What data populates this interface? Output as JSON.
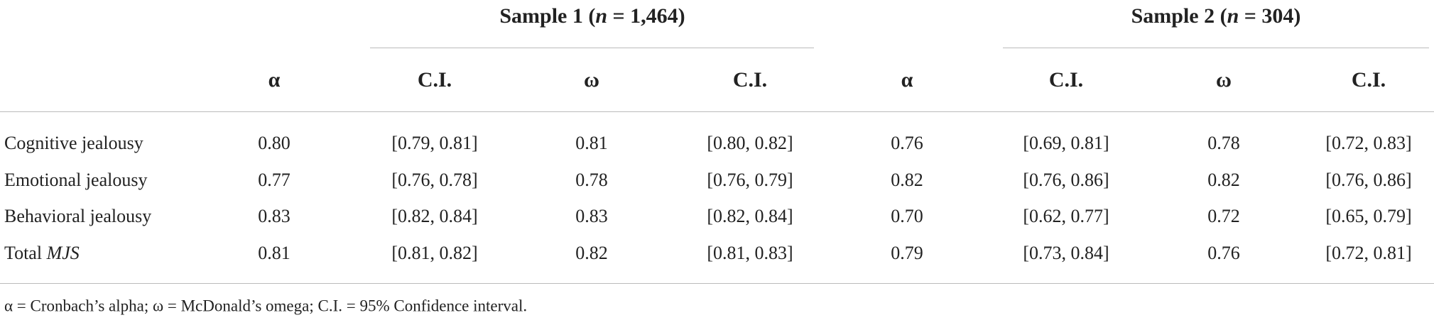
{
  "table": {
    "groups": [
      {
        "prefix": "Sample 1 (",
        "italic": "n",
        "suffix": " = 1,464)"
      },
      {
        "prefix": "Sample 2 (",
        "italic": "n",
        "suffix": " = 304)"
      }
    ],
    "columns": [
      "α",
      "C.I.",
      "ω",
      "C.I.",
      "α",
      "C.I.",
      "ω",
      "C.I."
    ],
    "rows": [
      {
        "label": "Cognitive jealousy",
        "cells": [
          "0.80",
          "[0.79, 0.81]",
          "0.81",
          "[0.80, 0.82]",
          "0.76",
          "[0.69, 0.81]",
          "0.78",
          "[0.72, 0.83]"
        ]
      },
      {
        "label": "Emotional jealousy",
        "cells": [
          "0.77",
          "[0.76, 0.78]",
          "0.78",
          "[0.76, 0.79]",
          "0.82",
          "[0.76, 0.86]",
          "0.82",
          "[0.76, 0.86]"
        ]
      },
      {
        "label": "Behavioral jealousy",
        "cells": [
          "0.83",
          "[0.82, 0.84]",
          "0.83",
          "[0.82, 0.84]",
          "0.70",
          "[0.62, 0.77]",
          "0.72",
          "[0.65, 0.79]"
        ]
      },
      {
        "label": "Total ",
        "label_italic": "MJS",
        "cells": [
          "0.81",
          "[0.81, 0.82]",
          "0.82",
          "[0.81, 0.83]",
          "0.79",
          "[0.73, 0.84]",
          "0.76",
          "[0.72, 0.81]"
        ]
      }
    ],
    "footnote": "α = Cronbach’s alpha; ω = McDonald’s omega; C.I. = 95% Confidence interval."
  }
}
